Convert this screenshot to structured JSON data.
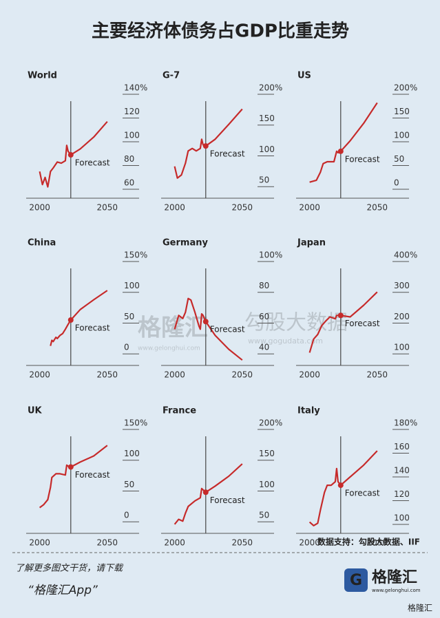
{
  "title": "主要经济体债务占GDP比重走势",
  "chart_data": [
    {
      "type": "line",
      "title": "World",
      "x": [
        2000,
        2002,
        2004,
        2006,
        2008,
        2010,
        2013,
        2016,
        2019,
        2020,
        2021,
        2023,
        2030,
        2040,
        2050
      ],
      "values": [
        75,
        64,
        70,
        62,
        75,
        78,
        83,
        82,
        84,
        97,
        92,
        89,
        94,
        104,
        117
      ],
      "color": "#c62a2a",
      "xlim": [
        1990,
        2072
      ],
      "xticks": [
        2000,
        2050
      ],
      "ylim": [
        52.5,
        140
      ],
      "yticks": [
        60,
        80,
        100,
        120,
        {
          "value": 140,
          "label": "140%"
        }
      ],
      "annotation": {
        "text": "Forecast",
        "x": 2023
      }
    },
    {
      "type": "line",
      "title": "G-7",
      "x": [
        2000,
        2002,
        2005,
        2008,
        2010,
        2013,
        2016,
        2019,
        2020,
        2021,
        2023,
        2030,
        2040,
        2050
      ],
      "values": [
        83,
        64,
        69,
        88,
        108,
        112,
        108,
        112,
        127,
        118,
        116,
        127,
        151,
        176
      ],
      "color": "#c62a2a",
      "xlim": [
        1990,
        2072
      ],
      "xticks": [
        2000,
        2050
      ],
      "ylim": [
        31.25,
        200
      ],
      "yticks": [
        50,
        100,
        150,
        {
          "value": 200,
          "label": "200%"
        }
      ],
      "annotation": {
        "text": "Forecast",
        "x": 2023
      }
    },
    {
      "type": "line",
      "title": "US",
      "x": [
        2000,
        2005,
        2008,
        2010,
        2013,
        2018,
        2020,
        2021,
        2023,
        2030,
        2040,
        2050
      ],
      "values": [
        15,
        19,
        36,
        54,
        58,
        58,
        80,
        77,
        80,
        102,
        139,
        182
      ],
      "color": "#c62a2a",
      "xlim": [
        1990,
        2072
      ],
      "xticks": [
        2000,
        2050
      ],
      "ylim": [
        -18.75,
        200
      ],
      "yticks": [
        0,
        50,
        100,
        150,
        {
          "value": 200,
          "label": "200%"
        }
      ],
      "annotation": {
        "text": "Forecast",
        "x": 2023
      }
    },
    {
      "type": "line",
      "title": "China",
      "x": [
        2008,
        2009,
        2010,
        2012,
        2013,
        2015,
        2017,
        2019,
        2021,
        2023,
        2030,
        2040,
        2050
      ],
      "values": [
        13,
        22,
        20,
        27,
        25,
        30,
        33,
        40,
        48,
        55,
        72,
        88,
        103
      ],
      "color": "#c62a2a",
      "xlim": [
        1990,
        2072
      ],
      "xticks": [
        2000,
        2050
      ],
      "ylim": [
        -18.75,
        150
      ],
      "yticks": [
        0,
        50,
        100,
        {
          "value": 150,
          "label": "150%"
        }
      ],
      "annotation": {
        "text": "Forecast",
        "x": 2023
      }
    },
    {
      "type": "line",
      "title": "Germany",
      "x": [
        2000,
        2003,
        2006,
        2008,
        2010,
        2012,
        2015,
        2018,
        2019,
        2020,
        2021,
        2023,
        2030,
        2040,
        2050
      ],
      "values": [
        56,
        65,
        63,
        67,
        76,
        75,
        67,
        58,
        56,
        66,
        65,
        61,
        52,
        43,
        36
      ],
      "color": "#c62a2a",
      "xlim": [
        1990,
        2072
      ],
      "xticks": [
        2000,
        2050
      ],
      "ylim": [
        32.5,
        100
      ],
      "yticks": [
        40,
        60,
        80,
        {
          "value": 100,
          "label": "100%"
        }
      ],
      "annotation": {
        "text": "Forecast",
        "x": 2023
      }
    },
    {
      "type": "line",
      "title": "Japan",
      "x": [
        2000,
        2003,
        2006,
        2009,
        2012,
        2015,
        2019,
        2020,
        2023,
        2030,
        2040,
        2050
      ],
      "values": [
        104,
        148,
        163,
        192,
        207,
        220,
        214,
        225,
        225,
        220,
        258,
        301
      ],
      "color": "#c62a2a",
      "xlim": [
        1990,
        2072
      ],
      "xticks": [
        2000,
        2050
      ],
      "ylim": [
        62.5,
        400
      ],
      "yticks": [
        100,
        200,
        300,
        {
          "value": 400,
          "label": "400%"
        }
      ],
      "annotation": {
        "text": "Forecast",
        "x": 2023
      }
    },
    {
      "type": "line",
      "title": "UK",
      "x": [
        2000,
        2003,
        2006,
        2008,
        2009,
        2012,
        2015,
        2019,
        2020,
        2022,
        2023,
        2030,
        2040,
        2050
      ],
      "values": [
        23,
        28,
        36,
        56,
        72,
        78,
        78,
        76,
        92,
        89,
        89,
        97,
        107,
        124
      ],
      "color": "#c62a2a",
      "xlim": [
        1990,
        2072
      ],
      "xticks": [
        2000,
        2050
      ],
      "ylim": [
        -18.75,
        150
      ],
      "yticks": [
        0,
        50,
        100,
        {
          "value": 150,
          "label": "150%"
        }
      ],
      "annotation": {
        "text": "Forecast",
        "x": 2023
      }
    },
    {
      "type": "line",
      "title": "France",
      "x": [
        2000,
        2003,
        2006,
        2008,
        2010,
        2015,
        2019,
        2020,
        2023,
        2030,
        2040,
        2050
      ],
      "values": [
        46,
        54,
        51,
        64,
        75,
        84,
        89,
        104,
        98,
        108,
        124,
        144
      ],
      "color": "#c62a2a",
      "xlim": [
        1990,
        2072
      ],
      "xticks": [
        2000,
        2050
      ],
      "ylim": [
        31.25,
        200
      ],
      "yticks": [
        50,
        100,
        150,
        {
          "value": 200,
          "label": "200%"
        }
      ],
      "annotation": {
        "text": "Forecast",
        "x": 2023
      }
    },
    {
      "type": "line",
      "title": "Italy",
      "x": [
        2000,
        2003,
        2006,
        2008,
        2011,
        2013,
        2016,
        2019,
        2020,
        2021,
        2023,
        2030,
        2040,
        2050
      ],
      "values": [
        102,
        99,
        101,
        112,
        127,
        133,
        133,
        136,
        147,
        136,
        133,
        140,
        150,
        162
      ],
      "color": "#c62a2a",
      "xlim": [
        1990,
        2072
      ],
      "xticks": [
        2000,
        2050
      ],
      "ylim": [
        92.5,
        180
      ],
      "yticks": [
        100,
        120,
        140,
        160,
        {
          "value": 180,
          "label": "180%"
        }
      ],
      "annotation": {
        "text": "Forecast",
        "x": 2023
      }
    }
  ],
  "source": "数据支持：勾股大数据、IIF",
  "footer": {
    "line1": "了解更多图文干货，请下载",
    "line2": "“格隆汇App”",
    "logo": "格隆汇",
    "logo_url": "www.gelonghui.com",
    "badge": "格隆汇"
  },
  "watermarks": {
    "left": "格隆汇",
    "left_url": "www.gelonghui.com",
    "right": "勾股大数据",
    "right_url": "www.gogudata.com"
  }
}
